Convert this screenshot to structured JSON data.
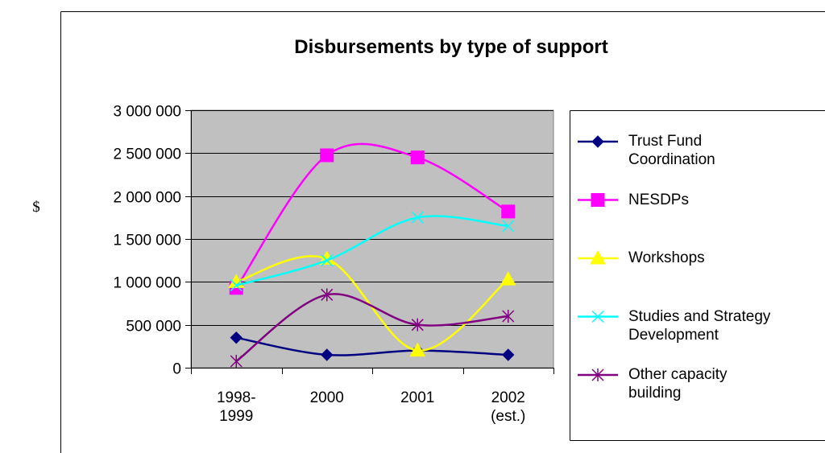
{
  "chart_data": {
    "type": "line",
    "title": "Disbursements by type of support",
    "y_label": "$",
    "categories": [
      "1998-1999",
      "2000",
      "2001",
      "2002 (est.)"
    ],
    "series": [
      {
        "name": "Trust Fund Coordination",
        "color": "#000080",
        "values": [
          350000,
          150000,
          200000,
          150000
        ]
      },
      {
        "name": "NESDPs",
        "color": "#ff00ff",
        "values": [
          930000,
          2475000,
          2450000,
          1820000
        ]
      },
      {
        "name": "Workshops",
        "color": "#ffff00",
        "values": [
          1000000,
          1270000,
          200000,
          1030000
        ]
      },
      {
        "name": "Studies and Strategy Development",
        "color": "#00ffff",
        "values": [
          960000,
          1250000,
          1750000,
          1650000
        ]
      },
      {
        "name": "Other capacity building",
        "color": "#800080",
        "values": [
          75000,
          850000,
          500000,
          600000
        ]
      }
    ],
    "ylim": [
      0,
      3000000
    ],
    "yticks": [
      {
        "value": 0,
        "label": "0"
      },
      {
        "value": 500000,
        "label": "500 000"
      },
      {
        "value": 1000000,
        "label": "1 000 000"
      },
      {
        "value": 1500000,
        "label": "1 500 000"
      },
      {
        "value": 2000000,
        "label": "2 000 000"
      },
      {
        "value": 2500000,
        "label": "2 500 000"
      },
      {
        "value": 3000000,
        "label": "3 000 000"
      }
    ],
    "grid": true,
    "smooth": true,
    "legend": "right",
    "plot_background": "#c0c0c0"
  }
}
